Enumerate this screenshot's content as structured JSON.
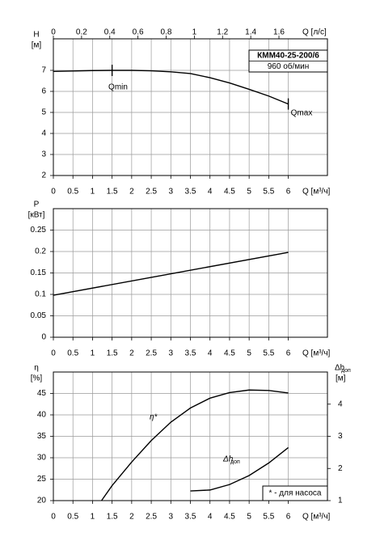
{
  "chart_data": [
    {
      "type": "line",
      "title": "КММ40-25-200/6",
      "subtitle": "960 об/мин",
      "xlabel": "Q [м³/ч]",
      "ylabel": "H",
      "yunit": "[м]",
      "xlim": [
        0,
        7
      ],
      "xticks": [
        0,
        0.5,
        1,
        1.5,
        2,
        2.5,
        3,
        3.5,
        4,
        4.5,
        5,
        5.5,
        6
      ],
      "ylim": [
        2,
        8.5
      ],
      "yticks": [
        2,
        3,
        4,
        5,
        6,
        7
      ],
      "x2label": "Q [л/с]",
      "x2lim": [
        0,
        1.944
      ],
      "x2ticks": [
        0,
        0.2,
        0.4,
        0.6,
        0.8,
        1,
        1.2,
        1.4,
        1.6
      ],
      "grid": true,
      "series": [
        {
          "color": "#000000",
          "x": [
            0,
            0.5,
            1,
            1.5,
            2,
            2.5,
            3,
            3.5,
            4,
            4.5,
            5,
            5.5,
            6
          ],
          "values": [
            6.95,
            6.97,
            6.99,
            7.0,
            7.0,
            6.98,
            6.93,
            6.85,
            6.65,
            6.4,
            6.1,
            5.78,
            5.4
          ]
        }
      ],
      "limits": [
        {
          "x": 1.5,
          "y": 7.0,
          "label": "Qmin"
        },
        {
          "x": 6,
          "y": 5.4,
          "label": "Qmax"
        }
      ]
    },
    {
      "type": "line",
      "xlabel": "Q [м³/ч]",
      "ylabel": "P",
      "yunit": "[кВт]",
      "xlim": [
        0,
        7
      ],
      "xticks": [
        0,
        0.5,
        1,
        1.5,
        2,
        2.5,
        3,
        3.5,
        4,
        4.5,
        5,
        5.5,
        6
      ],
      "ylim": [
        0,
        0.3
      ],
      "yticks": [
        0,
        0.05,
        0.1,
        0.15,
        0.2,
        0.25
      ],
      "grid": true,
      "series": [
        {
          "color": "#000000",
          "x": [
            0,
            3,
            6
          ],
          "values": [
            0.098,
            0.148,
            0.198
          ]
        }
      ]
    },
    {
      "type": "line",
      "xlabel": "Q [м³/ч]",
      "ylabel": "η",
      "yunit": "[%]",
      "y2label": "Δh",
      "y2label_sub": "доп",
      "y2unit": "[м]",
      "xlim": [
        0,
        7
      ],
      "xticks": [
        0,
        0.5,
        1,
        1.5,
        2,
        2.5,
        3,
        3.5,
        4,
        4.5,
        5,
        5.5,
        6
      ],
      "ylim": [
        20,
        50
      ],
      "yticks": [
        20,
        25,
        30,
        35,
        40,
        45
      ],
      "y2lim": [
        1,
        5
      ],
      "y2ticks": [
        1,
        2,
        3,
        4
      ],
      "grid": true,
      "note": "* - для насоса",
      "series": [
        {
          "name": "η*",
          "color": "#000000",
          "x": [
            1.23,
            1.5,
            2,
            2.5,
            3,
            3.5,
            4,
            4.5,
            5,
            5.5,
            6
          ],
          "values": [
            20,
            23.5,
            29,
            34,
            38.3,
            41.6,
            43.9,
            45.2,
            45.8,
            45.7,
            45.1
          ]
        },
        {
          "name": "Δh",
          "name_sub": "доп",
          "axis": "y2",
          "color": "#000000",
          "x": [
            3.5,
            4,
            4.5,
            5,
            5.5,
            6
          ],
          "values": [
            1.3,
            1.33,
            1.5,
            1.78,
            2.17,
            2.65
          ]
        }
      ]
    }
  ]
}
